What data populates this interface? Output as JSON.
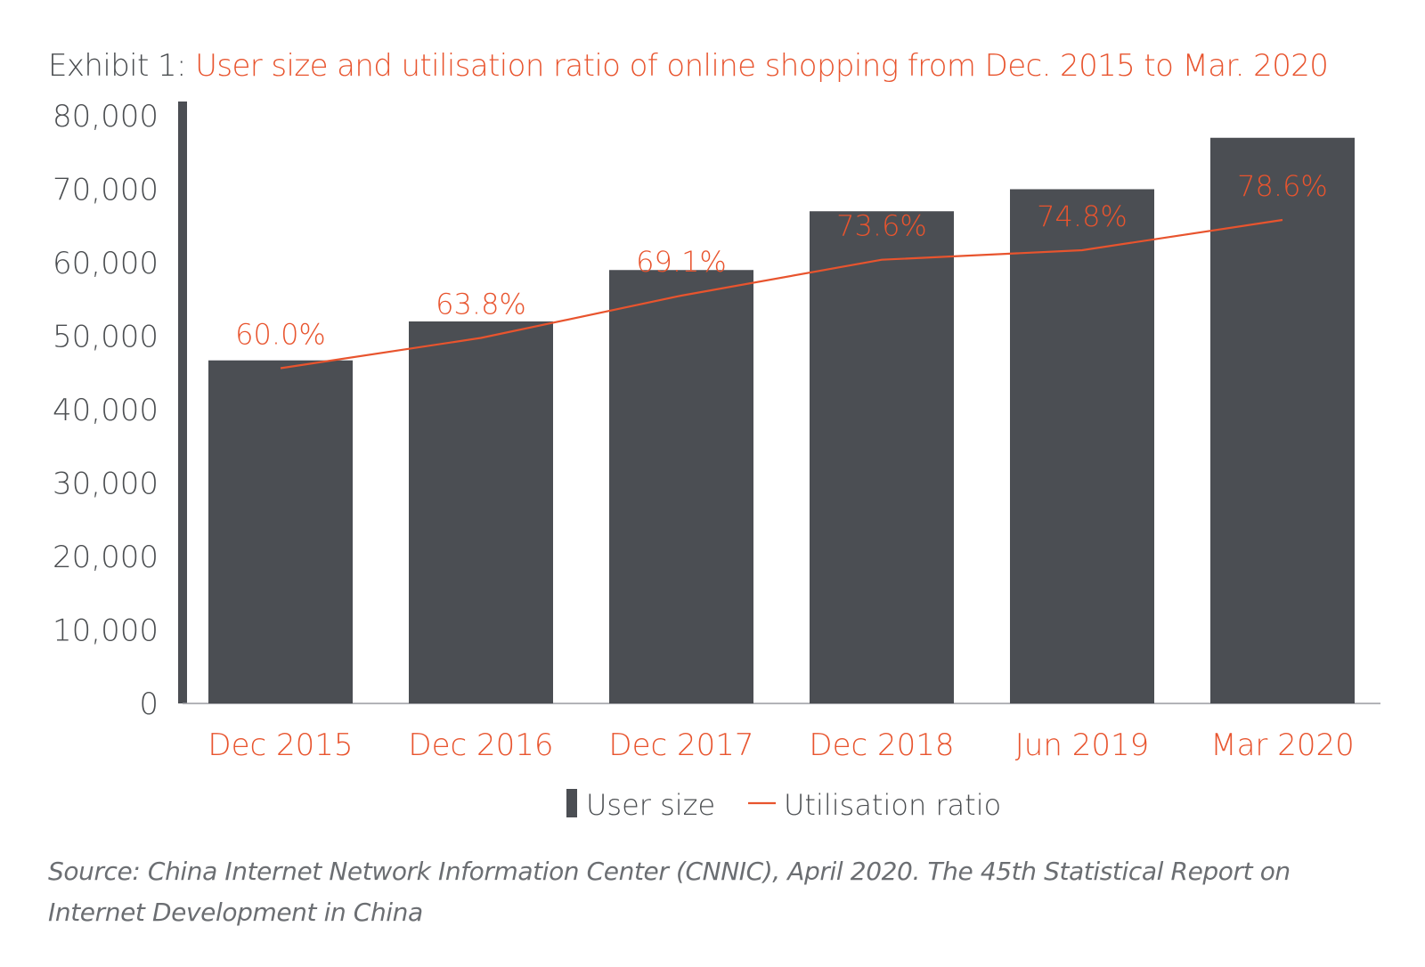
{
  "title_prefix": "Exhibit 1:",
  "title": "User size and utilisation ratio of online shopping from Dec.  2015 to Mar.  2020",
  "source": "Source: China Internet Network Information Center (CNNIC), April 2020.  The 45th Statistical Report on Internet Development in China",
  "colors": {
    "bar": "#4b4e53",
    "line": "#e8542e",
    "text": "#4a4d50",
    "category": "#e8542e"
  },
  "chart_data": {
    "type": "bar",
    "categories": [
      "Dec 2015",
      "Dec 2016",
      "Dec 2017",
      "Dec 2018",
      "Jun 2019",
      "Mar 2020"
    ],
    "series": [
      {
        "name": "User size",
        "type": "bar",
        "values": [
          46700,
          52000,
          59000,
          67000,
          70000,
          77000
        ]
      },
      {
        "name": "Utilisation ratio",
        "type": "line",
        "values": [
          60.0,
          63.8,
          69.1,
          73.6,
          74.8,
          78.6
        ],
        "labels": [
          "60.0%",
          "63.8%",
          "69.1%",
          "73.6%",
          "74.8%",
          "78.6%"
        ]
      }
    ],
    "y_ticks": [
      "0",
      "10,000",
      "20,000",
      "30,000",
      "40,000",
      "50,000",
      "60,000",
      "70,000",
      "80,000"
    ],
    "ylim": [
      0,
      80000
    ],
    "legend": "bottom-center",
    "grid": false
  }
}
